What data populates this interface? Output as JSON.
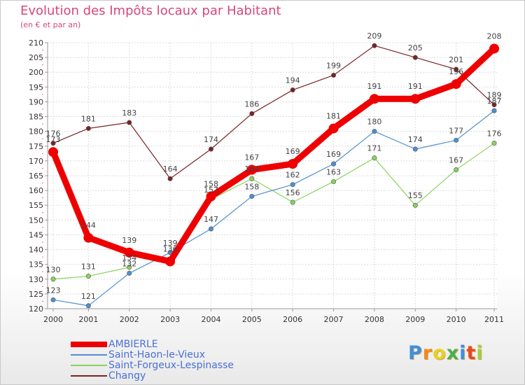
{
  "chart_data": {
    "type": "line",
    "title": "Evolution des Impôts locaux par Habitant",
    "subtitle": "(en € et par an)",
    "xlabel": "",
    "ylabel": "",
    "x": [
      "2000",
      "2001",
      "2002",
      "2003",
      "2004",
      "2005",
      "2006",
      "2007",
      "2008",
      "2009",
      "2010",
      "2011"
    ],
    "ylim": [
      120,
      210
    ],
    "yticks": [
      120,
      125,
      130,
      135,
      140,
      145,
      150,
      155,
      160,
      165,
      170,
      175,
      180,
      185,
      190,
      195,
      200,
      205,
      210
    ],
    "grid": true,
    "legend_position": "bottom-left",
    "series": [
      {
        "name": "AMBIERLE",
        "color": "#ee0000",
        "values": [
          173,
          144,
          139,
          136,
          158,
          167,
          169,
          181,
          191,
          191,
          196,
          208
        ]
      },
      {
        "name": "Saint-Haon-le-Vieux",
        "color": "#4f8fcf",
        "values": [
          123,
          121,
          132,
          139,
          147,
          158,
          162,
          169,
          180,
          174,
          177,
          187
        ]
      },
      {
        "name": "Saint-Forgeux-Lespinasse",
        "color": "#88d35c",
        "values": [
          130,
          131,
          134,
          null,
          157,
          164,
          156,
          163,
          171,
          155,
          167,
          176
        ]
      },
      {
        "name": "Changy",
        "color": "#7a2323",
        "values": [
          176,
          181,
          183,
          164,
          174,
          186,
          194,
          199,
          209,
          205,
          201,
          189
        ]
      }
    ]
  },
  "logo": {
    "text": "Proxiti",
    "colors": [
      "#3d8fe0",
      "#f08a1c",
      "#e8d21e",
      "#4ab04a",
      "#3d8fe0",
      "#e84a1c",
      "#9fd23c"
    ]
  }
}
